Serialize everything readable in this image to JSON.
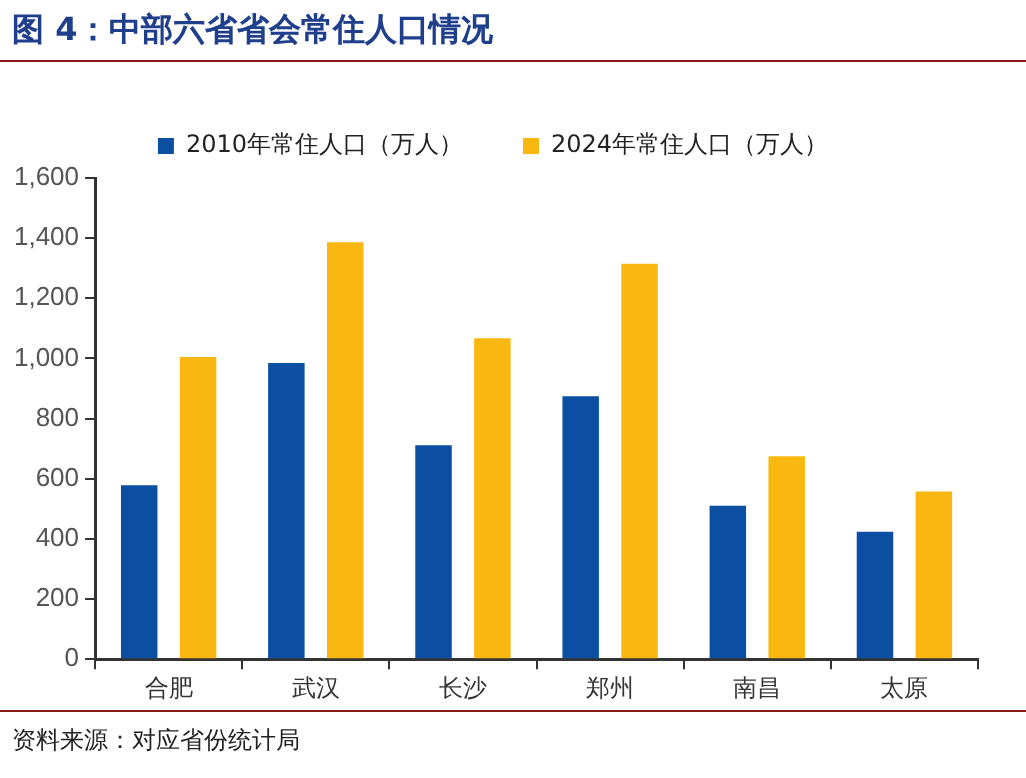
{
  "chart_data": {
    "type": "bar",
    "title": "图 4：中部六省省会常住人口情况",
    "categories": [
      "合肥",
      "武汉",
      "长沙",
      "郑州",
      "南昌",
      "太原"
    ],
    "series": [
      {
        "name": "2010年常住人口（万人）",
        "color": "#0b4ea2",
        "values": [
          578,
          985,
          711,
          874,
          510,
          424
        ]
      },
      {
        "name": "2024年常住人口（万人）",
        "color": "#f8b811",
        "values": [
          1005,
          1386,
          1067,
          1315,
          675,
          558
        ]
      }
    ],
    "ylim": [
      0,
      1600
    ],
    "yticks": [
      0,
      200,
      400,
      600,
      800,
      {
        "value": 1000,
        "label": "1,000"
      },
      {
        "value": 1200,
        "label": "1,200"
      },
      {
        "value": 1400,
        "label": "1,400"
      },
      {
        "value": 1600,
        "label": "1,600"
      }
    ],
    "legend": "top",
    "annotations": [
      "资料来源：对应省份统计局"
    ]
  }
}
